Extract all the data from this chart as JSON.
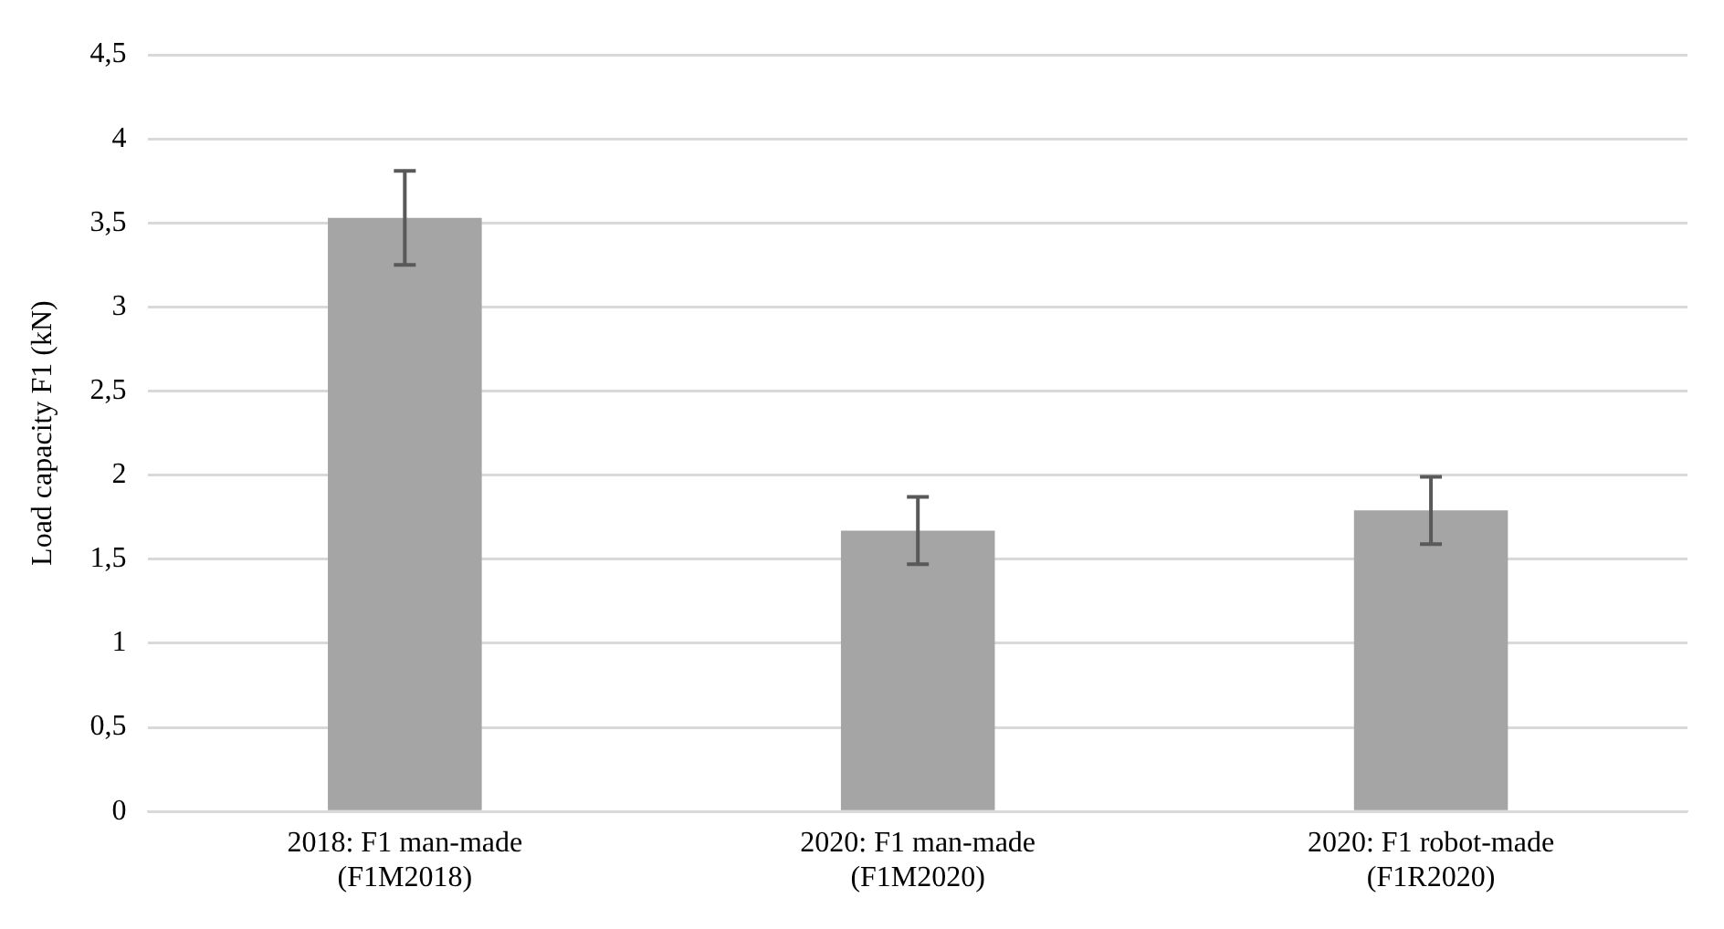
{
  "chart_data": {
    "type": "bar",
    "ylabel": "Load capacity F1 (kN)",
    "categories": [
      [
        "2018: F1 man-made",
        "(F1M2018)"
      ],
      [
        "2020: F1 man-made",
        "(F1M2020)"
      ],
      [
        "2020: F1 robot-made",
        "(F1R2020)"
      ]
    ],
    "values": [
      3.53,
      1.67,
      1.79
    ],
    "errors": [
      0.28,
      0.2,
      0.2
    ],
    "color": "#a5a5a5",
    "ylim": [
      0,
      4.5
    ],
    "yticks": [
      {
        "value": 0,
        "label": "0"
      },
      {
        "value": 0.5,
        "label": "0,5"
      },
      {
        "value": 1,
        "label": "1"
      },
      {
        "value": 1.5,
        "label": "1,5"
      },
      {
        "value": 2,
        "label": "2"
      },
      {
        "value": 2.5,
        "label": "2,5"
      },
      {
        "value": 3,
        "label": "3"
      },
      {
        "value": 3.5,
        "label": "3,5"
      },
      {
        "value": 4,
        "label": "4"
      },
      {
        "value": 4.5,
        "label": "4,5"
      }
    ],
    "grid": "y",
    "legend": false
  }
}
